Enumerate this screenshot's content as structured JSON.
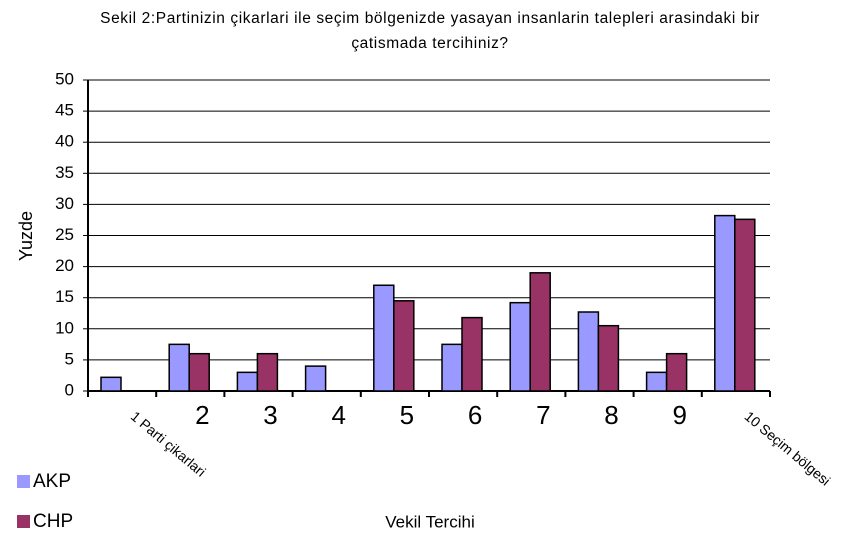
{
  "chart_data": {
    "type": "bar",
    "title": "Sekil 2:Partinizin çikarlari ile seçim bölgenizde yasayan insanlarin talepleri arasindaki bir çatismada tercihiniz?",
    "x_label": "Vekil Tercihi",
    "y_label": "Yuzde",
    "categories": [
      "1 Parti çikarlari",
      "2",
      "3",
      "4",
      "5",
      "6",
      "7",
      "8",
      "9",
      "10 Seçim bölgesi"
    ],
    "series": [
      {
        "name": "AKP",
        "color": "#9999ff",
        "values": [
          2.2,
          7.5,
          3,
          4,
          17,
          7.5,
          14.2,
          12.7,
          3,
          28.2
        ]
      },
      {
        "name": "CHP",
        "color": "#993366",
        "values": [
          null,
          6,
          6,
          null,
          14.5,
          11.8,
          19,
          10.5,
          6,
          27.6
        ]
      }
    ],
    "ylim": [
      0,
      50
    ],
    "yticks": [
      0,
      5,
      10,
      15,
      20,
      25,
      30,
      35,
      40,
      45,
      50
    ],
    "grid": true,
    "legend": "bottom-left"
  }
}
